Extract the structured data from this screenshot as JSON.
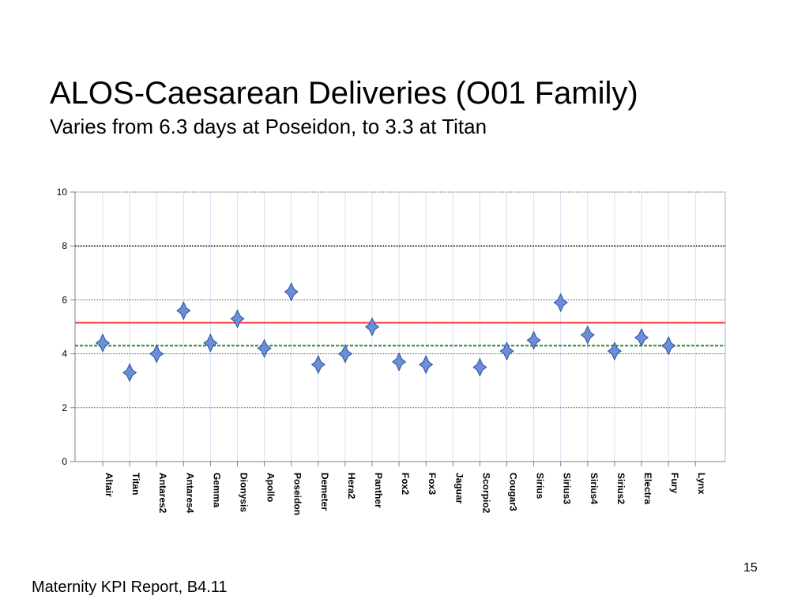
{
  "slide": {
    "title": "ALOS-Caesarean Deliveries (O01 Family)",
    "subtitle": "Varies from 6.3 days at Poseidon, to 3.3 at Titan",
    "footer": "Maternity KPI Report, B4.11",
    "page_number": "15"
  },
  "chart_data": {
    "type": "scatter",
    "title": "",
    "xlabel": "",
    "ylabel": "",
    "ylim": [
      0,
      10
    ],
    "y_ticks": [
      "0",
      "2",
      "4",
      "6",
      "8",
      "10"
    ],
    "grid": "horizontal",
    "categories": [
      "Altair",
      "Titan",
      "Antares2",
      "Antares4",
      "Gemma",
      "Dionysis",
      "Apollo",
      "Poseidon",
      "Demeter",
      "Hera2",
      "Panther",
      "Fox2",
      "Fox3",
      "Jaguar",
      "Scorpio2",
      "Cougar3",
      "Sirius",
      "Sirius3",
      "Sirius4",
      "Sirius2",
      "Electra",
      "Fury",
      "Lynx"
    ],
    "values": [
      4.4,
      3.3,
      4.0,
      5.6,
      4.4,
      5.3,
      4.2,
      6.3,
      3.6,
      4.0,
      5.0,
      3.7,
      3.6,
      null,
      3.5,
      4.1,
      4.5,
      5.9,
      4.7,
      4.1,
      4.6,
      4.3,
      null
    ],
    "reference_lines": [
      {
        "value": 8.0,
        "color": "#000000",
        "style": "dotted"
      },
      {
        "value": 5.15,
        "color": "#ff2a2a",
        "style": "solid"
      },
      {
        "value": 4.3,
        "color": "#2e8b2e",
        "style": "dashed"
      }
    ],
    "marker_color": "#6a8fd8",
    "marker_edge_color": "#2c4f9c"
  }
}
